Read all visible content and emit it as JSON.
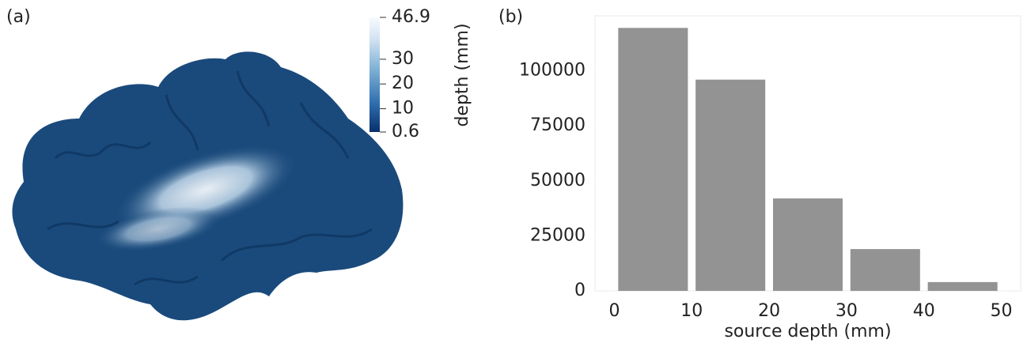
{
  "chart_data": [
    {
      "type": "colorbar",
      "panel_label": "(a)",
      "label": "depth (mm)",
      "ylim": [
        0.6,
        46.9
      ],
      "yticks": [
        0.6,
        10,
        20,
        30,
        46.9
      ]
    },
    {
      "type": "histogram",
      "panel_label": "(b)",
      "xlabel": "source depth (mm)",
      "bins": [
        0,
        10,
        20,
        30,
        40,
        50
      ],
      "values": [
        119500,
        96000,
        42000,
        19000,
        4000
      ],
      "color": "#939393",
      "xlim": [
        -2.5,
        52.5
      ],
      "ylim": [
        0,
        125000
      ],
      "xticks": [
        0,
        10,
        20,
        30,
        40,
        50
      ],
      "yticks": [
        0,
        25000,
        50000,
        75000,
        100000
      ]
    }
  ]
}
